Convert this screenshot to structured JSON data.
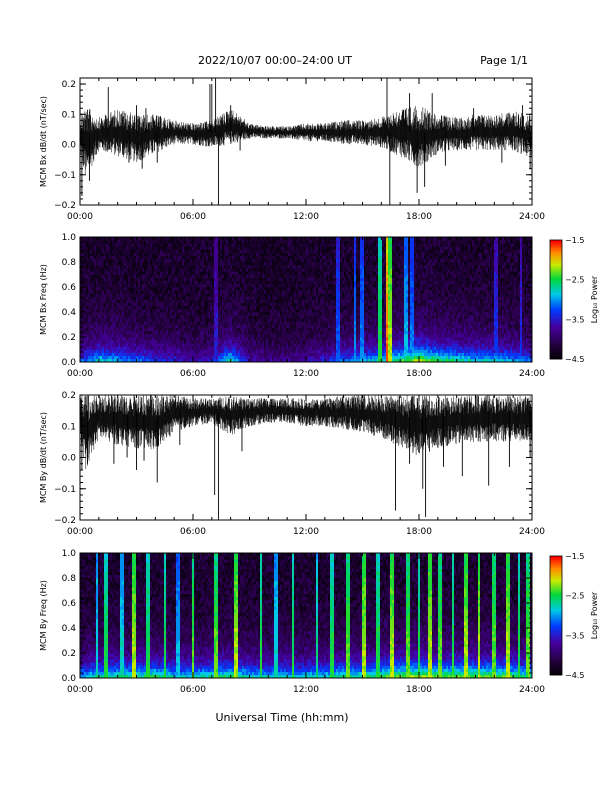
{
  "header": {
    "title": "2022/10/07  00:00–24:00 UT",
    "page": "Page 1/1"
  },
  "xlabel": "Universal Time (hh:mm)",
  "chart_data": [
    {
      "type": "line",
      "ylabel": "MCM Bx dB/dt (nT/sec)",
      "x_ticks": [
        "00:00",
        "06:00",
        "12:00",
        "18:00",
        "24:00"
      ],
      "y_ticks": [
        "−0.2",
        "−0.1",
        "0.0",
        "0.1",
        "0.2"
      ],
      "xlim_hours": [
        0,
        24
      ],
      "ylim": [
        -0.2,
        0.22
      ],
      "baseline": 0.04,
      "envelope": [
        {
          "x": 0,
          "lo": -0.03,
          "hi": 0.1
        },
        {
          "x": 0.3,
          "lo": -0.12,
          "hi": 0.13
        },
        {
          "x": 1,
          "lo": -0.02,
          "hi": 0.09
        },
        {
          "x": 2,
          "lo": -0.04,
          "hi": 0.12
        },
        {
          "x": 3,
          "lo": -0.06,
          "hi": 0.1
        },
        {
          "x": 4,
          "lo": -0.03,
          "hi": 0.1
        },
        {
          "x": 5,
          "lo": 0.0,
          "hi": 0.08
        },
        {
          "x": 6,
          "lo": 0.0,
          "hi": 0.07
        },
        {
          "x": 7,
          "lo": -0.01,
          "hi": 0.08
        },
        {
          "x": 8,
          "lo": 0.0,
          "hi": 0.12
        },
        {
          "x": 9,
          "lo": 0.02,
          "hi": 0.07
        },
        {
          "x": 10,
          "lo": 0.02,
          "hi": 0.06
        },
        {
          "x": 11,
          "lo": 0.02,
          "hi": 0.06
        },
        {
          "x": 12,
          "lo": 0.01,
          "hi": 0.07
        },
        {
          "x": 13,
          "lo": 0.01,
          "hi": 0.07
        },
        {
          "x": 14,
          "lo": 0.0,
          "hi": 0.08
        },
        {
          "x": 15,
          "lo": 0.0,
          "hi": 0.08
        },
        {
          "x": 16,
          "lo": -0.01,
          "hi": 0.09
        },
        {
          "x": 17,
          "lo": -0.04,
          "hi": 0.12
        },
        {
          "x": 18,
          "lo": -0.08,
          "hi": 0.13
        },
        {
          "x": 19,
          "lo": -0.03,
          "hi": 0.1
        },
        {
          "x": 20,
          "lo": -0.02,
          "hi": 0.09
        },
        {
          "x": 21,
          "lo": -0.02,
          "hi": 0.1
        },
        {
          "x": 22,
          "lo": -0.02,
          "hi": 0.1
        },
        {
          "x": 23,
          "lo": -0.02,
          "hi": 0.11
        },
        {
          "x": 24,
          "lo": -0.05,
          "hi": 0.1
        }
      ],
      "spikes": [
        {
          "x": 0.1,
          "y": -0.17
        },
        {
          "x": 0.5,
          "y": -0.12
        },
        {
          "x": 1.5,
          "y": 0.19
        },
        {
          "x": 2.6,
          "y": -0.06
        },
        {
          "x": 3.0,
          "y": 0.13
        },
        {
          "x": 3.3,
          "y": -0.08
        },
        {
          "x": 3.5,
          "y": 0.12
        },
        {
          "x": 4.1,
          "y": -0.06
        },
        {
          "x": 6.9,
          "y": 0.2
        },
        {
          "x": 7.0,
          "y": 0.2
        },
        {
          "x": 7.2,
          "y": 0.22
        },
        {
          "x": 7.35,
          "y": -0.2
        },
        {
          "x": 8.0,
          "y": 0.13
        },
        {
          "x": 8.5,
          "y": -0.02
        },
        {
          "x": 16.3,
          "y": 0.22
        },
        {
          "x": 16.45,
          "y": -0.2
        },
        {
          "x": 17.5,
          "y": 0.17
        },
        {
          "x": 17.9,
          "y": -0.16
        },
        {
          "x": 18.3,
          "y": -0.14
        },
        {
          "x": 18.7,
          "y": 0.17
        },
        {
          "x": 19.4,
          "y": -0.07
        },
        {
          "x": 20.9,
          "y": 0.12
        },
        {
          "x": 22.4,
          "y": -0.06
        },
        {
          "x": 23.5,
          "y": 0.13
        },
        {
          "x": 23.9,
          "y": -0.08
        }
      ]
    },
    {
      "type": "heatmap",
      "ylabel": "MCM Bx Freq (Hz)",
      "colorbar_label": "Log₁₀ Power",
      "colorbar_ticks": [
        "−1.5",
        "−2.5",
        "−3.5",
        "−4.5"
      ],
      "clim": [
        -4.5,
        -1.5
      ],
      "x_ticks": [
        "00:00",
        "06:00",
        "12:00",
        "18:00",
        "24:00"
      ],
      "y_ticks": [
        "0.0",
        "0.2",
        "0.4",
        "0.6",
        "0.8",
        "1.0"
      ],
      "ylim": [
        0,
        1.0
      ],
      "activity": [
        {
          "x": 0,
          "v": 0.3
        },
        {
          "x": 1,
          "v": 0.45
        },
        {
          "x": 2,
          "v": 0.4
        },
        {
          "x": 3,
          "v": 0.35
        },
        {
          "x": 4,
          "v": 0.3
        },
        {
          "x": 5,
          "v": 0.25
        },
        {
          "x": 6,
          "v": 0.2
        },
        {
          "x": 7,
          "v": 0.25
        },
        {
          "x": 8,
          "v": 0.5
        },
        {
          "x": 9,
          "v": 0.2
        },
        {
          "x": 10,
          "v": 0.15
        },
        {
          "x": 11,
          "v": 0.15
        },
        {
          "x": 12,
          "v": 0.2
        },
        {
          "x": 13,
          "v": 0.25
        },
        {
          "x": 14,
          "v": 0.35
        },
        {
          "x": 15,
          "v": 0.4
        },
        {
          "x": 16,
          "v": 0.45
        },
        {
          "x": 17,
          "v": 0.55
        },
        {
          "x": 18,
          "v": 0.65
        },
        {
          "x": 19,
          "v": 0.55
        },
        {
          "x": 20,
          "v": 0.5
        },
        {
          "x": 21,
          "v": 0.45
        },
        {
          "x": 22,
          "v": 0.45
        },
        {
          "x": 23,
          "v": 0.4
        },
        {
          "x": 24,
          "v": 0.35
        }
      ],
      "bursts": [
        {
          "x": 7.25,
          "p": 0.35
        },
        {
          "x": 13.7,
          "p": 0.45
        },
        {
          "x": 14.6,
          "p": 0.5
        },
        {
          "x": 15.0,
          "p": 0.5
        },
        {
          "x": 15.9,
          "p": 0.7
        },
        {
          "x": 16.3,
          "p": 0.95
        },
        {
          "x": 16.45,
          "p": 0.8
        },
        {
          "x": 17.3,
          "p": 0.55
        },
        {
          "x": 17.6,
          "p": 0.5
        },
        {
          "x": 22.1,
          "p": 0.4
        },
        {
          "x": 23.4,
          "p": 0.4
        }
      ]
    },
    {
      "type": "line",
      "ylabel": "MCM By dB/dt (nT/sec)",
      "x_ticks": [
        "00:00",
        "06:00",
        "12:00",
        "18:00",
        "24:00"
      ],
      "y_ticks": [
        "−0.2",
        "−0.1",
        "0.0",
        "0.1",
        "0.2"
      ],
      "xlim_hours": [
        0,
        24
      ],
      "ylim": [
        -0.2,
        0.2
      ],
      "baseline": 0.15,
      "envelope": [
        {
          "x": 0,
          "lo": 0.05,
          "hi": 0.2
        },
        {
          "x": 0.3,
          "lo": -0.04,
          "hi": 0.2
        },
        {
          "x": 1,
          "lo": 0.06,
          "hi": 0.2
        },
        {
          "x": 2,
          "lo": 0.04,
          "hi": 0.2
        },
        {
          "x": 3,
          "lo": 0.03,
          "hi": 0.2
        },
        {
          "x": 4,
          "lo": 0.02,
          "hi": 0.2
        },
        {
          "x": 5,
          "lo": 0.08,
          "hi": 0.2
        },
        {
          "x": 6,
          "lo": 0.1,
          "hi": 0.19
        },
        {
          "x": 7,
          "lo": 0.11,
          "hi": 0.19
        },
        {
          "x": 8,
          "lo": 0.07,
          "hi": 0.2
        },
        {
          "x": 9,
          "lo": 0.1,
          "hi": 0.19
        },
        {
          "x": 10,
          "lo": 0.11,
          "hi": 0.19
        },
        {
          "x": 11,
          "lo": 0.11,
          "hi": 0.19
        },
        {
          "x": 12,
          "lo": 0.1,
          "hi": 0.19
        },
        {
          "x": 13,
          "lo": 0.1,
          "hi": 0.19
        },
        {
          "x": 14,
          "lo": 0.09,
          "hi": 0.2
        },
        {
          "x": 15,
          "lo": 0.08,
          "hi": 0.2
        },
        {
          "x": 16,
          "lo": 0.06,
          "hi": 0.2
        },
        {
          "x": 17,
          "lo": 0.03,
          "hi": 0.2
        },
        {
          "x": 18,
          "lo": 0.0,
          "hi": 0.2
        },
        {
          "x": 19,
          "lo": 0.03,
          "hi": 0.2
        },
        {
          "x": 20,
          "lo": 0.04,
          "hi": 0.2
        },
        {
          "x": 21,
          "lo": 0.05,
          "hi": 0.2
        },
        {
          "x": 22,
          "lo": 0.05,
          "hi": 0.2
        },
        {
          "x": 23,
          "lo": 0.05,
          "hi": 0.2
        },
        {
          "x": 24,
          "lo": 0.05,
          "hi": 0.2
        }
      ],
      "spikes": [
        {
          "x": 0.1,
          "y": -0.04
        },
        {
          "x": 0.4,
          "y": -0.02
        },
        {
          "x": 1.8,
          "y": -0.02
        },
        {
          "x": 2.5,
          "y": 0.0
        },
        {
          "x": 3.0,
          "y": -0.04
        },
        {
          "x": 3.4,
          "y": -0.01
        },
        {
          "x": 4.1,
          "y": -0.08
        },
        {
          "x": 5.3,
          "y": 0.04
        },
        {
          "x": 7.15,
          "y": -0.12
        },
        {
          "x": 7.35,
          "y": -0.2
        },
        {
          "x": 8.6,
          "y": 0.02
        },
        {
          "x": 16.75,
          "y": -0.17
        },
        {
          "x": 17.5,
          "y": -0.02
        },
        {
          "x": 18.2,
          "y": -0.1
        },
        {
          "x": 18.35,
          "y": -0.19
        },
        {
          "x": 19.3,
          "y": -0.03
        },
        {
          "x": 20.3,
          "y": -0.06
        },
        {
          "x": 21.7,
          "y": -0.09
        },
        {
          "x": 22.8,
          "y": -0.03
        },
        {
          "x": 23.9,
          "y": 0.0
        }
      ]
    },
    {
      "type": "heatmap",
      "ylabel": "MCM By Freq (Hz)",
      "colorbar_label": "Log₁₀ Power",
      "colorbar_ticks": [
        "−1.5",
        "−2.5",
        "−3.5",
        "−4.5"
      ],
      "clim": [
        -4.5,
        -1.5
      ],
      "x_ticks": [
        "00:00",
        "06:00",
        "12:00",
        "18:00",
        "24:00"
      ],
      "y_ticks": [
        "0.0",
        "0.2",
        "0.4",
        "0.6",
        "0.8",
        "1.0"
      ],
      "ylim": [
        0,
        1.0
      ],
      "activity": [
        {
          "x": 0,
          "v": 0.4
        },
        {
          "x": 1,
          "v": 0.5
        },
        {
          "x": 2,
          "v": 0.5
        },
        {
          "x": 3,
          "v": 0.5
        },
        {
          "x": 4,
          "v": 0.55
        },
        {
          "x": 5,
          "v": 0.45
        },
        {
          "x": 6,
          "v": 0.45
        },
        {
          "x": 7,
          "v": 0.5
        },
        {
          "x": 8,
          "v": 0.55
        },
        {
          "x": 9,
          "v": 0.45
        },
        {
          "x": 10,
          "v": 0.45
        },
        {
          "x": 11,
          "v": 0.45
        },
        {
          "x": 12,
          "v": 0.45
        },
        {
          "x": 13,
          "v": 0.45
        },
        {
          "x": 14,
          "v": 0.5
        },
        {
          "x": 15,
          "v": 0.5
        },
        {
          "x": 16,
          "v": 0.55
        },
        {
          "x": 17,
          "v": 0.6
        },
        {
          "x": 18,
          "v": 0.65
        },
        {
          "x": 19,
          "v": 0.6
        },
        {
          "x": 20,
          "v": 0.6
        },
        {
          "x": 21,
          "v": 0.6
        },
        {
          "x": 22,
          "v": 0.6
        },
        {
          "x": 23,
          "v": 0.55
        },
        {
          "x": 24,
          "v": 0.5
        }
      ],
      "bursts": [
        {
          "x": 0.9,
          "p": 0.6
        },
        {
          "x": 1.4,
          "p": 0.7
        },
        {
          "x": 2.2,
          "p": 0.6
        },
        {
          "x": 2.9,
          "p": 0.8
        },
        {
          "x": 3.6,
          "p": 0.7
        },
        {
          "x": 4.5,
          "p": 0.7
        },
        {
          "x": 5.2,
          "p": 0.55
        },
        {
          "x": 6.0,
          "p": 0.75
        },
        {
          "x": 7.2,
          "p": 0.75
        },
        {
          "x": 8.3,
          "p": 0.8
        },
        {
          "x": 9.6,
          "p": 0.7
        },
        {
          "x": 10.4,
          "p": 0.6
        },
        {
          "x": 11.3,
          "p": 0.7
        },
        {
          "x": 12.6,
          "p": 0.65
        },
        {
          "x": 13.4,
          "p": 0.7
        },
        {
          "x": 14.2,
          "p": 0.75
        },
        {
          "x": 15.1,
          "p": 0.8
        },
        {
          "x": 15.8,
          "p": 0.7
        },
        {
          "x": 16.6,
          "p": 0.8
        },
        {
          "x": 17.4,
          "p": 0.75
        },
        {
          "x": 18.0,
          "p": 0.7
        },
        {
          "x": 18.6,
          "p": 0.8
        },
        {
          "x": 19.1,
          "p": 0.75
        },
        {
          "x": 19.8,
          "p": 0.7
        },
        {
          "x": 20.5,
          "p": 0.8
        },
        {
          "x": 21.2,
          "p": 0.8
        },
        {
          "x": 22.0,
          "p": 0.75
        },
        {
          "x": 22.7,
          "p": 0.8
        },
        {
          "x": 23.3,
          "p": 0.7
        },
        {
          "x": 23.8,
          "p": 0.75
        }
      ]
    }
  ]
}
